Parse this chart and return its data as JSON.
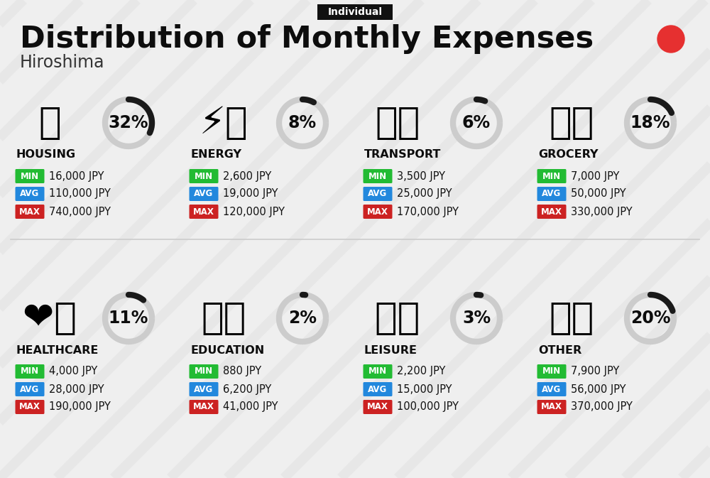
{
  "title": "Distribution of Monthly Expenses",
  "subtitle": "Hiroshima",
  "badge": "Individual",
  "bg_color": "#efefef",
  "categories": [
    {
      "name": "HOUSING",
      "pct": 32,
      "min": "16,000 JPY",
      "avg": "110,000 JPY",
      "max": "740,000 JPY",
      "icon": "🏢",
      "col": 0,
      "row": 0
    },
    {
      "name": "ENERGY",
      "pct": 8,
      "min": "2,600 JPY",
      "avg": "19,000 JPY",
      "max": "120,000 JPY",
      "icon": "⚡🏠",
      "col": 1,
      "row": 0
    },
    {
      "name": "TRANSPORT",
      "pct": 6,
      "min": "3,500 JPY",
      "avg": "25,000 JPY",
      "max": "170,000 JPY",
      "icon": "🚌🚗",
      "col": 2,
      "row": 0
    },
    {
      "name": "GROCERY",
      "pct": 18,
      "min": "7,000 JPY",
      "avg": "50,000 JPY",
      "max": "330,000 JPY",
      "icon": "🍬🥦",
      "col": 3,
      "row": 0
    },
    {
      "name": "HEALTHCARE",
      "pct": 11,
      "min": "4,000 JPY",
      "avg": "28,000 JPY",
      "max": "190,000 JPY",
      "icon": "❤️💉",
      "col": 0,
      "row": 1
    },
    {
      "name": "EDUCATION",
      "pct": 2,
      "min": "880 JPY",
      "avg": "6,200 JPY",
      "max": "41,000 JPY",
      "icon": "🎓📚",
      "col": 1,
      "row": 1
    },
    {
      "name": "LEISURE",
      "pct": 3,
      "min": "2,200 JPY",
      "avg": "15,000 JPY",
      "max": "100,000 JPY",
      "icon": "🛍️🛏️",
      "col": 2,
      "row": 1
    },
    {
      "name": "OTHER",
      "pct": 20,
      "min": "7,900 JPY",
      "avg": "56,000 JPY",
      "max": "370,000 JPY",
      "icon": "💰👛",
      "col": 3,
      "row": 1
    }
  ],
  "min_color": "#22bb33",
  "avg_color": "#2288dd",
  "max_color": "#cc2222",
  "arc_dark": "#1a1a1a",
  "arc_light": "#cccccc",
  "badge_bg": "#111111",
  "badge_fg": "#ffffff",
  "red_dot": "#e63030",
  "title_color": "#0d0d0d",
  "subtitle_color": "#333333",
  "divider_color": "#cccccc",
  "stripe_color": "#e0e0e0",
  "value_color": "#111111",
  "cat_name_color": "#0d0d0d"
}
